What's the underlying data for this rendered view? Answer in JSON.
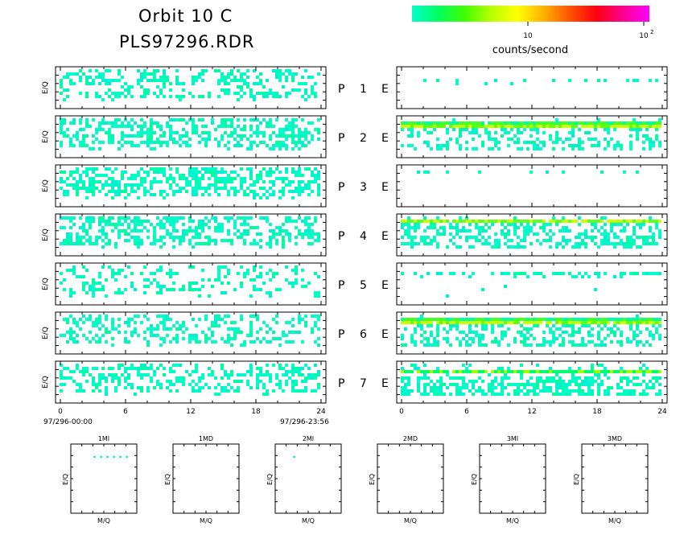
{
  "title": {
    "line1": "Orbit 10 C",
    "line2": "PLS97296.RDR"
  },
  "colorbar": {
    "label": "counts/second",
    "tick_10": "10",
    "tick_100_base": "10",
    "tick_100_exp": "2",
    "colors": [
      "#00ffc8",
      "#00ff60",
      "#40ff00",
      "#b8ff00",
      "#ffff00",
      "#ffb000",
      "#ff5000",
      "#ff0010",
      "#ff0090",
      "#ff00ff"
    ]
  },
  "chart_data": {
    "type": "heatmap",
    "description_axis": "E/Q vs time spectrograms for 7 PLS channels, P (left) and E (right) columns",
    "ylabel": "E/Q",
    "x_ticks": [
      "0",
      "6",
      "12",
      "18",
      "24"
    ],
    "xlim": [
      0,
      24
    ],
    "start_time": "97/296-00:00",
    "end_time": "97/296-23:56",
    "rows": [
      {
        "p_label": "P",
        "num": "1",
        "e_label": "E",
        "p_density": 0.35,
        "e_pattern": "sparse"
      },
      {
        "p_label": "P",
        "num": "2",
        "e_label": "E",
        "p_density": 0.45,
        "e_pattern": "band"
      },
      {
        "p_label": "P",
        "num": "3",
        "e_label": "E",
        "p_density": 0.5,
        "e_pattern": "very_sparse"
      },
      {
        "p_label": "P",
        "num": "4",
        "e_label": "E",
        "p_density": 0.45,
        "e_pattern": "band_dense"
      },
      {
        "p_label": "P",
        "num": "5",
        "e_label": "E",
        "p_density": 0.25,
        "e_pattern": "mid_sparse"
      },
      {
        "p_label": "P",
        "num": "6",
        "e_label": "E",
        "p_density": 0.35,
        "e_pattern": "band"
      },
      {
        "p_label": "P",
        "num": "7",
        "e_label": "E",
        "p_density": 0.35,
        "e_pattern": "band_lower"
      }
    ],
    "mq_panels": [
      {
        "title": "1MI",
        "xlabel": "M/Q",
        "ylabel": "E/Q"
      },
      {
        "title": "1MD",
        "xlabel": "M/Q",
        "ylabel": "E/Q"
      },
      {
        "title": "2MI",
        "xlabel": "M/Q",
        "ylabel": "E/Q"
      },
      {
        "title": "2MD",
        "xlabel": "M/Q",
        "ylabel": "E/Q"
      },
      {
        "title": "3MI",
        "xlabel": "M/Q",
        "ylabel": "E/Q"
      },
      {
        "title": "3MD",
        "xlabel": "M/Q",
        "ylabel": "E/Q"
      }
    ]
  }
}
